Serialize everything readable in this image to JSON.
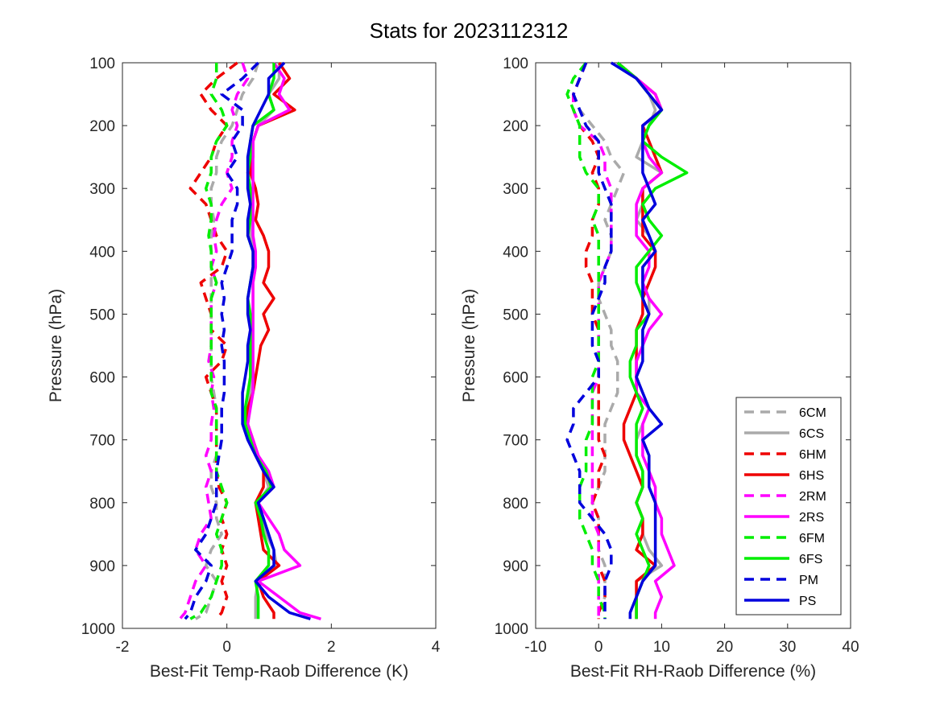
{
  "title": "Stats for 2023112312",
  "colors": {
    "6C": "#aaaaaa",
    "6H": "#ee0000",
    "2R": "#ff00ff",
    "6F": "#00ee00",
    "P": "#0000dd"
  },
  "chart_data": [
    {
      "type": "line",
      "xlabel": "Best-Fit Temp-Raob Difference (K)",
      "ylabel": "Pressure (hPa)",
      "xlim": [
        -2,
        4
      ],
      "ylim": [
        100,
        1000
      ],
      "y_reversed": true,
      "xticks": [
        -2,
        0,
        2,
        4
      ],
      "yticks": [
        100,
        200,
        300,
        400,
        500,
        600,
        700,
        800,
        900,
        1000
      ],
      "grid": false,
      "pressure": [
        100,
        125,
        150,
        175,
        200,
        225,
        250,
        275,
        300,
        325,
        350,
        375,
        400,
        425,
        450,
        475,
        500,
        525,
        550,
        575,
        600,
        625,
        650,
        675,
        700,
        725,
        750,
        775,
        800,
        825,
        850,
        875,
        900,
        925,
        950,
        975,
        985
      ],
      "series": [
        {
          "name": "6CM",
          "style": "dashed",
          "color_key": "6C",
          "values": [
            0.6,
            0.5,
            0.3,
            0.2,
            0.1,
            -0.1,
            -0.2,
            -0.2,
            -0.3,
            -0.3,
            -0.25,
            -0.3,
            -0.3,
            -0.3,
            -0.3,
            -0.3,
            -0.3,
            -0.3,
            -0.3,
            -0.3,
            -0.3,
            -0.25,
            -0.2,
            -0.2,
            -0.2,
            -0.2,
            -0.3,
            -0.3,
            -0.2,
            -0.2,
            -0.1,
            -0.3,
            -0.4,
            -0.2,
            -0.3,
            -0.4,
            -0.6
          ]
        },
        {
          "name": "6CS",
          "style": "solid",
          "color_key": "6C",
          "values": [
            1.0,
            1.0,
            0.8,
            0.9,
            0.6,
            0.5,
            0.45,
            0.4,
            0.45,
            0.45,
            0.45,
            0.45,
            0.5,
            0.55,
            0.5,
            0.5,
            0.5,
            0.5,
            0.5,
            0.5,
            0.5,
            0.45,
            0.4,
            0.35,
            0.45,
            0.55,
            0.7,
            0.8,
            0.6,
            0.65,
            0.75,
            0.9,
            0.95,
            0.6,
            0.55,
            0.55,
            0.55
          ]
        },
        {
          "name": "6HM",
          "style": "dashed",
          "color_key": "6H",
          "values": [
            0.2,
            -0.2,
            -0.5,
            -0.3,
            0.0,
            -0.2,
            -0.3,
            -0.5,
            -0.7,
            -0.4,
            -0.3,
            -0.2,
            0.0,
            -0.1,
            -0.5,
            -0.4,
            -0.3,
            -0.3,
            0.0,
            -0.1,
            -0.4,
            -0.3,
            -0.2,
            -0.2,
            -0.2,
            -0.2,
            -0.2,
            -0.15,
            0.0,
            -0.1,
            0.0,
            -0.1,
            0.0,
            -0.1,
            0.0,
            -0.1,
            -0.2
          ]
        },
        {
          "name": "6HS",
          "style": "solid",
          "color_key": "6H",
          "values": [
            1.0,
            1.2,
            0.9,
            1.3,
            0.6,
            0.5,
            0.5,
            0.45,
            0.55,
            0.6,
            0.55,
            0.7,
            0.8,
            0.8,
            0.7,
            0.9,
            0.7,
            0.8,
            0.65,
            0.6,
            0.55,
            0.5,
            0.4,
            0.4,
            0.5,
            0.6,
            0.7,
            0.7,
            0.55,
            0.6,
            0.65,
            0.7,
            1.0,
            0.6,
            0.7,
            0.9,
            0.9
          ]
        },
        {
          "name": "2RM",
          "style": "dashed",
          "color_key": "2R",
          "values": [
            0.3,
            0.4,
            0.2,
            0.1,
            0.2,
            0.1,
            0.1,
            0.0,
            0.1,
            -0.1,
            -0.2,
            -0.25,
            -0.2,
            -0.3,
            -0.2,
            -0.3,
            -0.3,
            -0.3,
            -0.3,
            -0.35,
            -0.25,
            -0.3,
            -0.25,
            -0.3,
            -0.3,
            -0.4,
            -0.3,
            -0.4,
            -0.35,
            -0.3,
            -0.5,
            -0.6,
            -0.4,
            -0.6,
            -0.7,
            -0.8,
            -0.9
          ]
        },
        {
          "name": "2RS",
          "style": "solid",
          "color_key": "2R",
          "values": [
            0.9,
            1.1,
            1.0,
            1.2,
            0.6,
            0.5,
            0.5,
            0.5,
            0.5,
            0.5,
            0.5,
            0.5,
            0.55,
            0.55,
            0.5,
            0.5,
            0.5,
            0.5,
            0.5,
            0.5,
            0.5,
            0.5,
            0.45,
            0.4,
            0.5,
            0.6,
            0.8,
            0.9,
            0.6,
            0.8,
            1.0,
            1.1,
            1.4,
            0.6,
            1.0,
            1.4,
            1.8
          ]
        },
        {
          "name": "6FM",
          "style": "dashed",
          "color_key": "6F",
          "values": [
            -0.2,
            -0.2,
            -0.3,
            -0.1,
            0.0,
            -0.2,
            -0.3,
            -0.3,
            -0.4,
            -0.3,
            -0.3,
            -0.35,
            -0.3,
            -0.3,
            -0.2,
            -0.3,
            -0.3,
            -0.3,
            -0.3,
            -0.3,
            -0.3,
            -0.3,
            -0.2,
            -0.2,
            -0.2,
            -0.2,
            -0.2,
            -0.1,
            0.0,
            -0.1,
            -0.2,
            -0.1,
            -0.1,
            -0.2,
            -0.3,
            -0.5,
            -0.7
          ]
        },
        {
          "name": "6FS",
          "style": "solid",
          "color_key": "6F",
          "values": [
            0.9,
            0.9,
            0.8,
            0.9,
            0.5,
            0.45,
            0.45,
            0.4,
            0.45,
            0.45,
            0.45,
            0.4,
            0.5,
            0.5,
            0.45,
            0.4,
            0.45,
            0.45,
            0.45,
            0.45,
            0.45,
            0.4,
            0.35,
            0.35,
            0.45,
            0.55,
            0.75,
            0.85,
            0.55,
            0.65,
            0.7,
            0.8,
            0.8,
            0.55,
            0.6,
            0.6,
            0.6
          ]
        },
        {
          "name": "PM",
          "style": "dashed",
          "color_key": "P",
          "values": [
            0.6,
            0.3,
            -0.1,
            0.3,
            0.3,
            0.1,
            0.2,
            0.0,
            0.2,
            0.2,
            0.1,
            0.1,
            0.1,
            0.0,
            -0.1,
            -0.05,
            -0.1,
            -0.05,
            -0.1,
            -0.05,
            -0.05,
            -0.05,
            -0.1,
            -0.1,
            -0.1,
            -0.15,
            -0.2,
            -0.2,
            -0.2,
            -0.3,
            -0.4,
            -0.6,
            -0.3,
            -0.4,
            -0.6,
            -0.7,
            -0.8
          ]
        },
        {
          "name": "PS",
          "style": "solid",
          "color_key": "P",
          "values": [
            1.1,
            0.8,
            0.8,
            0.65,
            0.5,
            0.45,
            0.4,
            0.4,
            0.4,
            0.45,
            0.4,
            0.4,
            0.5,
            0.5,
            0.45,
            0.4,
            0.4,
            0.45,
            0.4,
            0.4,
            0.35,
            0.3,
            0.3,
            0.3,
            0.4,
            0.55,
            0.7,
            0.9,
            0.6,
            0.7,
            0.8,
            0.9,
            0.9,
            0.55,
            0.8,
            1.2,
            1.6
          ]
        }
      ]
    },
    {
      "type": "line",
      "xlabel": "Best-Fit RH-Raob Difference (%)",
      "ylabel": "Pressure (hPa)",
      "xlim": [
        -10,
        40
      ],
      "ylim": [
        100,
        1000
      ],
      "y_reversed": true,
      "xticks": [
        -10,
        0,
        10,
        20,
        30,
        40
      ],
      "yticks": [
        100,
        200,
        300,
        400,
        500,
        600,
        700,
        800,
        900,
        1000
      ],
      "grid": false,
      "legend_position": "lower-right",
      "pressure": [
        100,
        125,
        150,
        175,
        200,
        225,
        250,
        275,
        300,
        325,
        350,
        375,
        400,
        425,
        450,
        475,
        500,
        525,
        550,
        575,
        600,
        625,
        650,
        675,
        700,
        725,
        750,
        775,
        800,
        825,
        850,
        875,
        900,
        925,
        950,
        975,
        985
      ],
      "series": [
        {
          "name": "6CM",
          "style": "dashed",
          "color_key": "6C",
          "values": [
            -2,
            -3,
            -4,
            -3,
            -1,
            1,
            2,
            4,
            3,
            2,
            1,
            2,
            2,
            1,
            0,
            0,
            1,
            2,
            2,
            3,
            3,
            3,
            2,
            1,
            1,
            1,
            1,
            0,
            -1,
            0,
            0,
            0,
            1,
            1,
            1,
            0,
            0
          ]
        },
        {
          "name": "6CS",
          "style": "solid",
          "color_key": "6C",
          "values": [
            3,
            6,
            8,
            9,
            8,
            7,
            6,
            10,
            7,
            7,
            6,
            8,
            9,
            7,
            7,
            8,
            8,
            7,
            7,
            6,
            6,
            7,
            8,
            7,
            6,
            6,
            7,
            7,
            6,
            7,
            7,
            8,
            10,
            6,
            6,
            6,
            6
          ]
        },
        {
          "name": "6HM",
          "style": "dashed",
          "color_key": "6H",
          "values": [
            -2,
            -3,
            -4,
            -4,
            -3,
            -1,
            0,
            -1,
            0,
            0,
            -1,
            -1,
            -2,
            -2,
            -1,
            -1,
            -1,
            0,
            0,
            0,
            0,
            0,
            0,
            0,
            0,
            1,
            0,
            0,
            -1,
            0,
            0,
            0,
            0,
            1,
            1,
            0,
            0
          ]
        },
        {
          "name": "6HS",
          "style": "solid",
          "color_key": "6H",
          "values": [
            3,
            6,
            9,
            10,
            7,
            8,
            9,
            10,
            7,
            7,
            7,
            7,
            9,
            9,
            8,
            7,
            7,
            6,
            6,
            6,
            6,
            6,
            5,
            4,
            4,
            5,
            6,
            7,
            6,
            7,
            7,
            6,
            9,
            6,
            6,
            6,
            6
          ]
        },
        {
          "name": "2RM",
          "style": "dashed",
          "color_key": "2R",
          "values": [
            -2,
            -3,
            -4,
            -4,
            -3,
            0,
            1,
            1,
            2,
            2,
            2,
            2,
            2,
            1,
            0,
            0,
            0,
            0,
            0,
            0,
            0,
            -1,
            -1,
            -1,
            -1,
            -1,
            -1,
            -1,
            -1,
            -1,
            0,
            0,
            0,
            0,
            0,
            0,
            0
          ]
        },
        {
          "name": "2RS",
          "style": "solid",
          "color_key": "2R",
          "values": [
            3,
            6,
            9,
            10,
            7,
            7,
            8,
            10,
            7,
            6,
            6,
            6,
            8,
            8,
            7,
            8,
            10,
            8,
            7,
            6,
            6,
            6,
            8,
            7,
            7,
            7,
            8,
            9,
            9,
            10,
            10,
            11,
            12,
            9,
            10,
            9,
            9
          ]
        },
        {
          "name": "6FM",
          "style": "dashed",
          "color_key": "6F",
          "values": [
            -2,
            -4,
            -5,
            -4,
            -3,
            -3,
            -3,
            -2,
            0,
            0,
            -1,
            0,
            0,
            0,
            0,
            0,
            0,
            0,
            0,
            0,
            -1,
            -1,
            -1,
            -1,
            -2,
            -2,
            -2,
            -3,
            -3,
            -3,
            -2,
            -1,
            -1,
            0,
            0,
            1,
            1
          ]
        },
        {
          "name": "6FS",
          "style": "solid",
          "color_key": "6F",
          "values": [
            3,
            6,
            8,
            10,
            8,
            7,
            10,
            14,
            9,
            7,
            8,
            10,
            8,
            6,
            6,
            7,
            8,
            6,
            6,
            5,
            5,
            6,
            7,
            6,
            6,
            6,
            7,
            7,
            6,
            7,
            6,
            7,
            8,
            7,
            6,
            6,
            6
          ]
        },
        {
          "name": "PM",
          "style": "dashed",
          "color_key": "P",
          "values": [
            -2,
            -3,
            -4,
            -3,
            -2,
            0,
            0,
            0,
            1,
            2,
            2,
            2,
            2,
            1,
            1,
            0,
            -1,
            -1,
            -1,
            0,
            0,
            -2,
            -4,
            -4,
            -5,
            -4,
            -3,
            -3,
            -3,
            -1,
            1,
            2,
            2,
            1,
            1,
            1,
            1
          ]
        },
        {
          "name": "PS",
          "style": "solid",
          "color_key": "P",
          "values": [
            2,
            6,
            8,
            10,
            7,
            7,
            7,
            7,
            8,
            9,
            7,
            8,
            9,
            7,
            7,
            7,
            8,
            7,
            7,
            7,
            6,
            7,
            8,
            10,
            7,
            8,
            8,
            8,
            9,
            9,
            9,
            9,
            9,
            7,
            6,
            5,
            5
          ]
        }
      ]
    }
  ]
}
